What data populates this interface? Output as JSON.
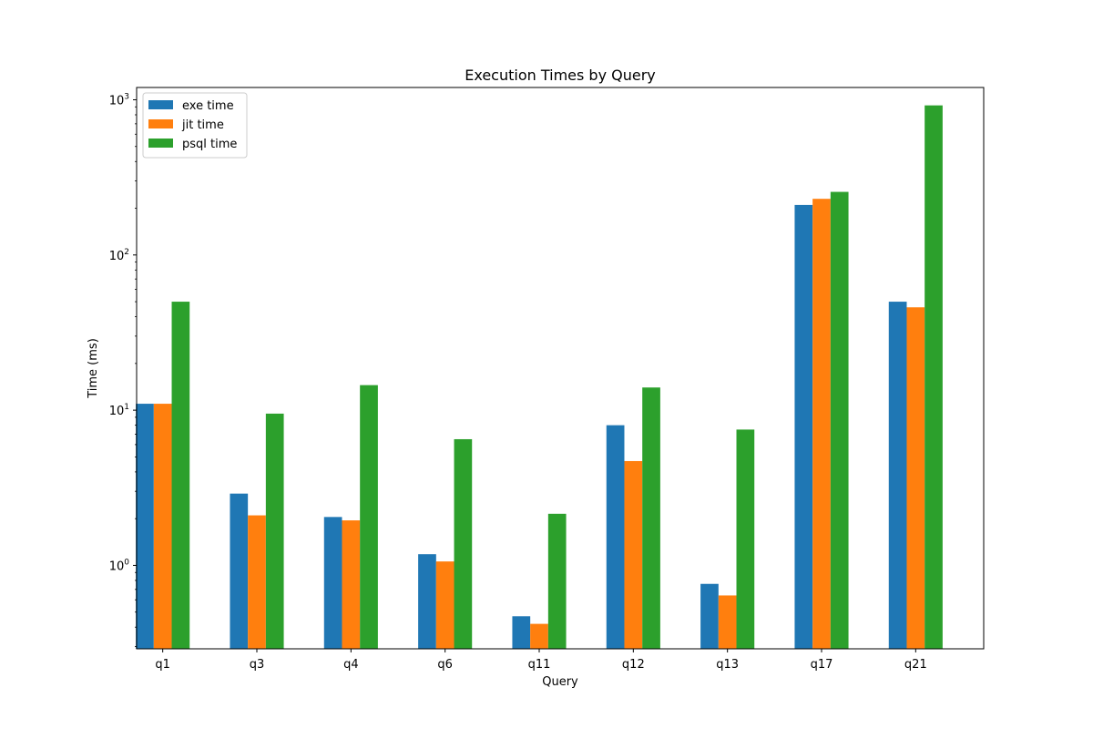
{
  "chart_data": {
    "type": "bar",
    "title": "Execution Times by Query",
    "xlabel": "Query",
    "ylabel": "Time (ms)",
    "yscale": "log",
    "ylim": [
      0.29,
      1200
    ],
    "yticks": [
      {
        "value": 1,
        "base": "10",
        "exp": "0"
      },
      {
        "value": 10,
        "base": "10",
        "exp": "1"
      },
      {
        "value": 100,
        "base": "10",
        "exp": "2"
      },
      {
        "value": 1000,
        "base": "10",
        "exp": "3"
      }
    ],
    "categories": [
      "q1",
      "q3",
      "q4",
      "q6",
      "q11",
      "q12",
      "q13",
      "q17",
      "q21"
    ],
    "series": [
      {
        "name": "exe time",
        "color": "#1f77b4",
        "values": [
          11.0,
          2.9,
          2.05,
          1.18,
          0.47,
          8.0,
          0.76,
          210,
          50
        ]
      },
      {
        "name": "jit time",
        "color": "#ff7f0e",
        "values": [
          11.0,
          2.1,
          1.95,
          1.06,
          0.42,
          4.7,
          0.64,
          230,
          46
        ]
      },
      {
        "name": "psql time",
        "color": "#2ca02c",
        "values": [
          50,
          9.5,
          14.5,
          6.5,
          2.15,
          14.0,
          7.5,
          255,
          920
        ]
      }
    ],
    "grid": false,
    "legend_position": "top-left"
  }
}
